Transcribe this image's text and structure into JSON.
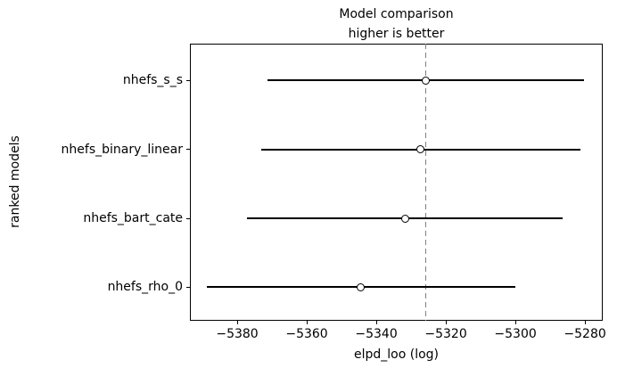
{
  "chart_data": {
    "type": "scatter",
    "variant": "model-comparison-dot-plot-with-error-bars",
    "title": "Model comparison",
    "subtitle": "higher is better",
    "xlabel": "elpd_loo (log)",
    "ylabel": "ranked models",
    "xlim": [
      -5393.6,
      -5274.9
    ],
    "xticks": [
      -5380,
      -5360,
      -5340,
      -5320,
      -5300,
      -5280
    ],
    "xtick_labels": [
      "−5380",
      "−5360",
      "−5340",
      "−5320",
      "−5300",
      "−5280"
    ],
    "grid": false,
    "legend_position": "none",
    "reference_line": {
      "value": -5325.8,
      "style": "dashed",
      "color": "#808080"
    },
    "marker": {
      "shape": "open-circle",
      "fill_color": "#ffffff",
      "edge_color": "#000000"
    },
    "line_color": "#000000",
    "series": [
      {
        "name": "nhefs_s_s",
        "elpd_loo": -5325.8,
        "se": 45.4
      },
      {
        "name": "nhefs_binary_linear",
        "elpd_loo": -5327.2,
        "se": 46.0
      },
      {
        "name": "nhefs_bart_cate",
        "elpd_loo": -5331.8,
        "se": 45.4
      },
      {
        "name": "nhefs_rho_0",
        "elpd_loo": -5344.4,
        "se": 44.4
      }
    ]
  }
}
